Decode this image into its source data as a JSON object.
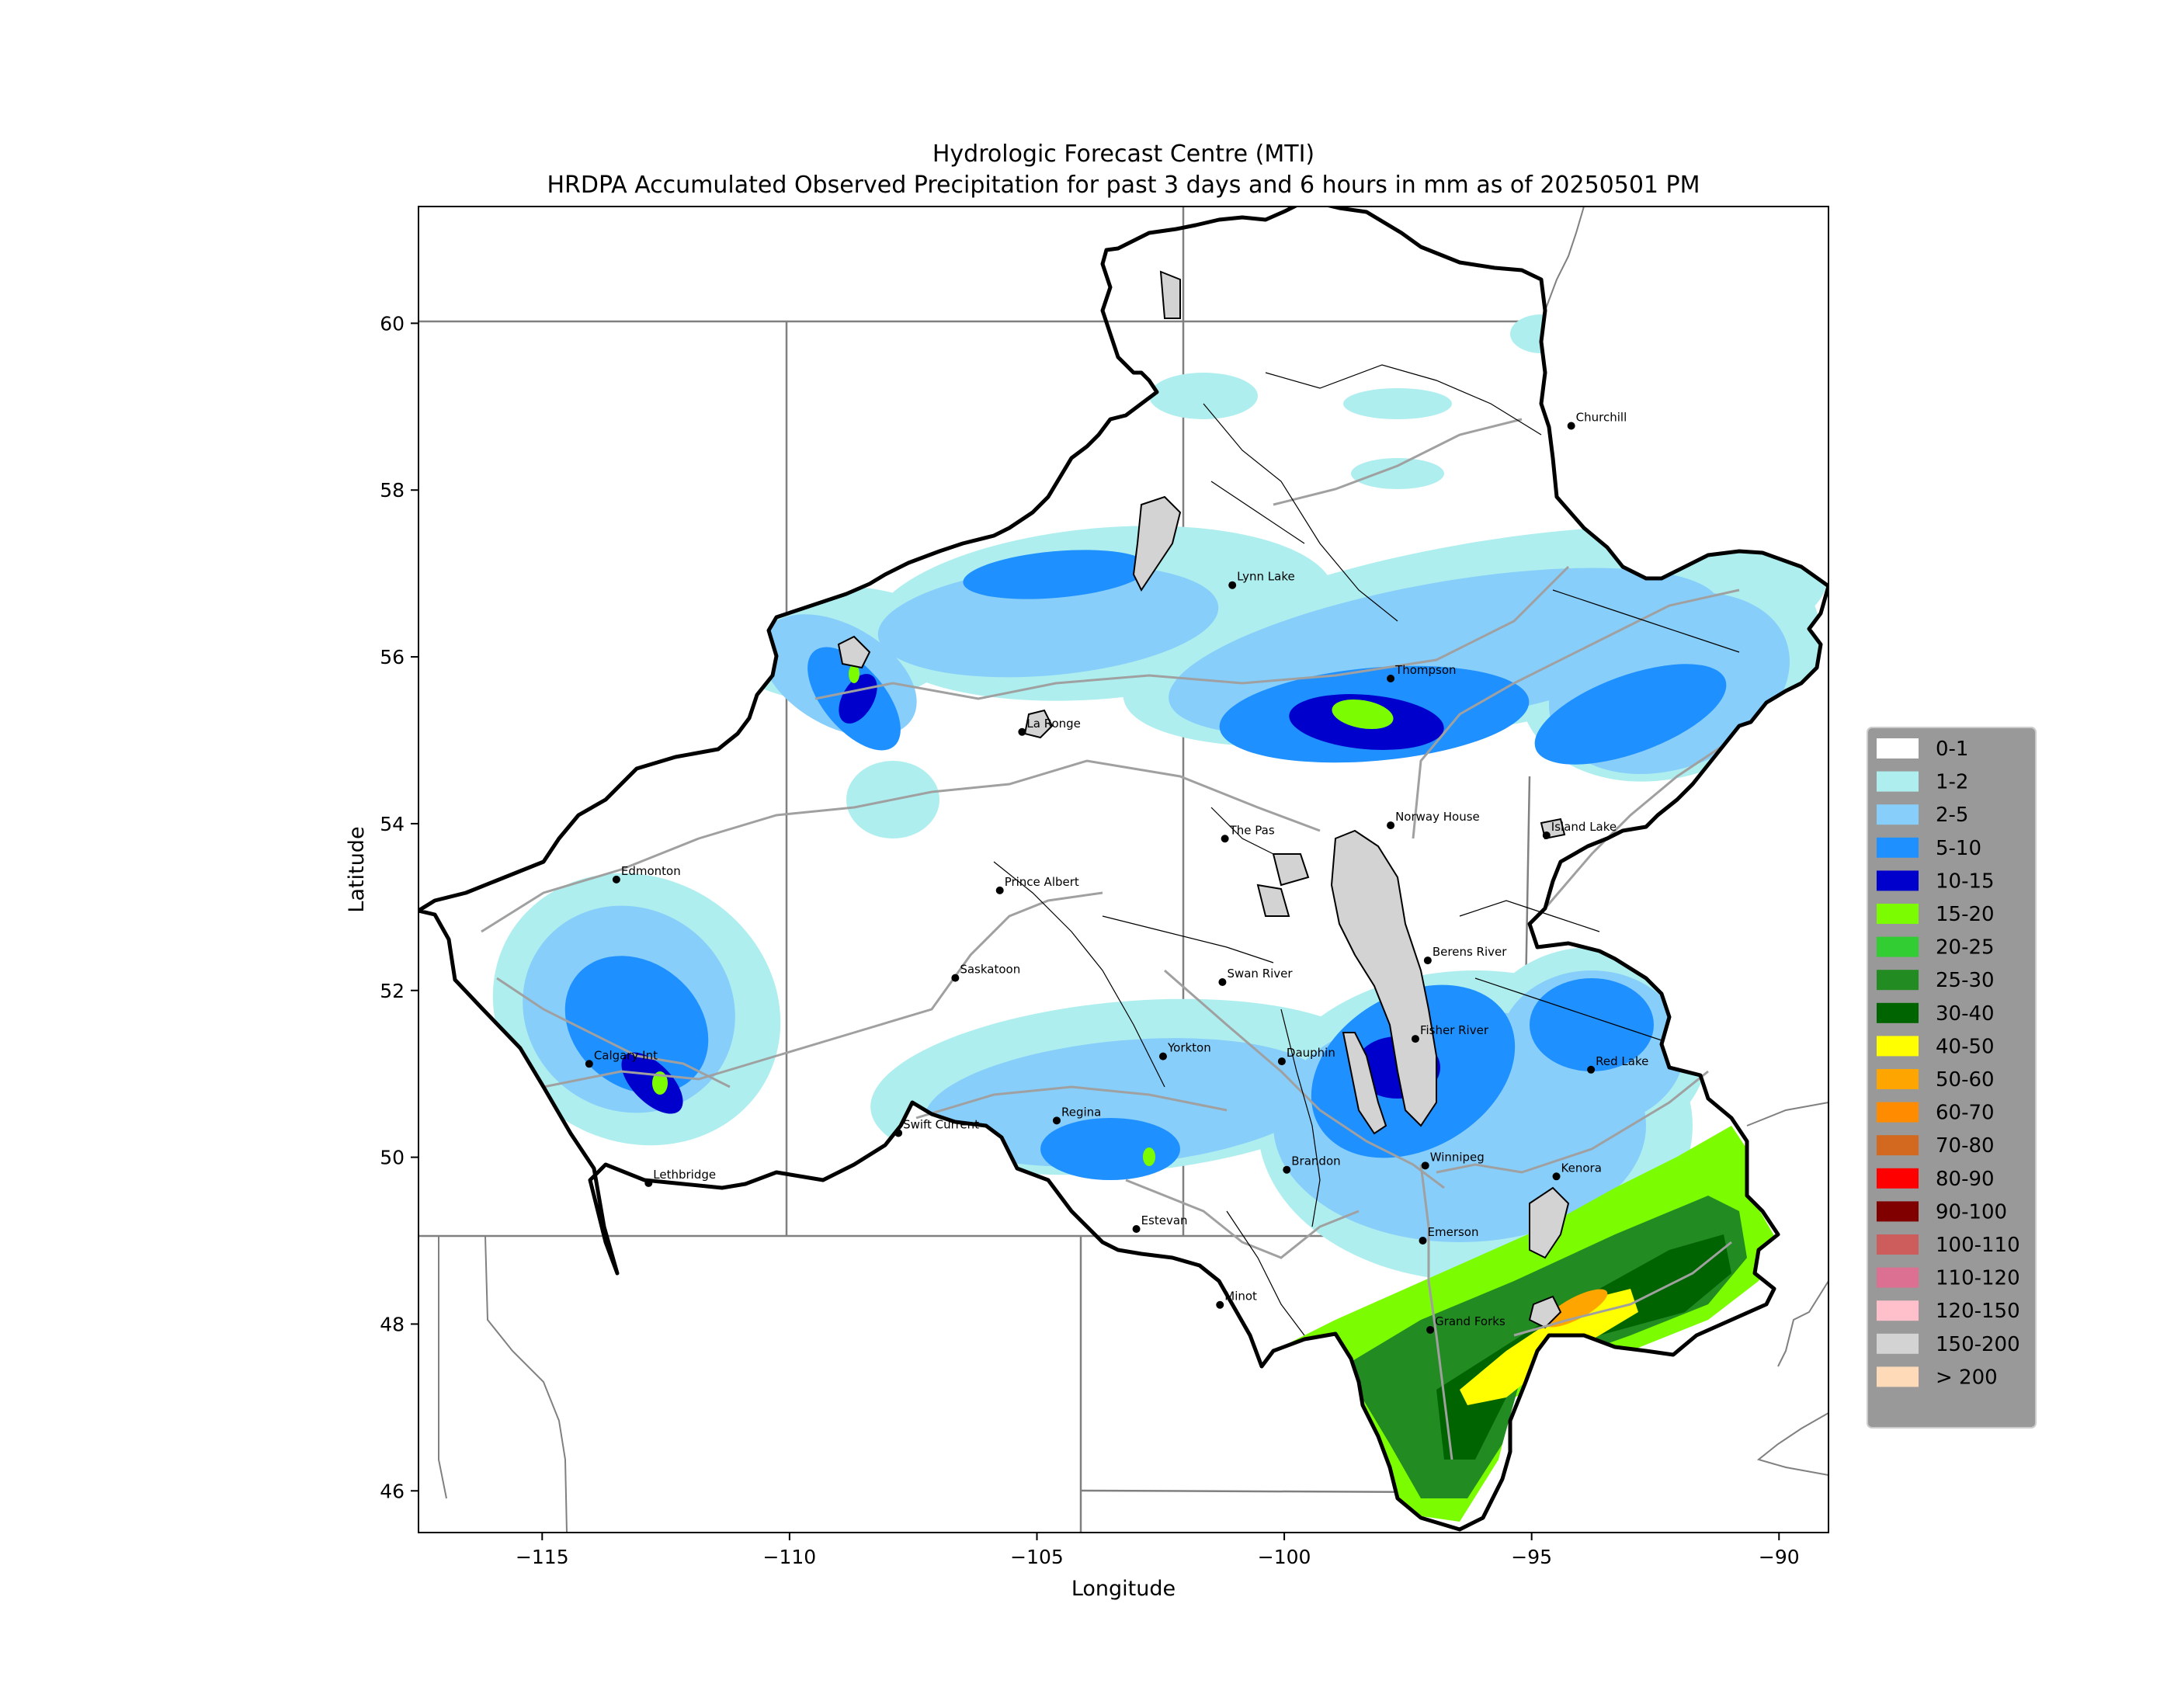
{
  "title": {
    "line1": "Hydrologic Forecast Centre (MTI)",
    "line2": "HRDPA Accumulated Observed Precipitation for past 3 days and 6 hours in mm as of 20250501 PM"
  },
  "axes": {
    "xlabel": "Longitude",
    "ylabel": "Latitude",
    "xlim": [
      -117.5,
      -89
    ],
    "ylim": [
      45.5,
      61.4
    ],
    "xticks": [
      -115,
      -110,
      -105,
      -100,
      -95,
      -90
    ],
    "xtick_labels": [
      "−115",
      "−110",
      "−105",
      "−100",
      "−95",
      "−90"
    ],
    "yticks": [
      46,
      48,
      50,
      52,
      54,
      56,
      58,
      60
    ],
    "ytick_labels": [
      "46",
      "48",
      "50",
      "52",
      "54",
      "56",
      "58",
      "60"
    ]
  },
  "cities": [
    {
      "name": "Churchill",
      "lon": -94.2,
      "lat": 58.77
    },
    {
      "name": "Lynn Lake",
      "lon": -101.05,
      "lat": 56.86
    },
    {
      "name": "Thompson",
      "lon": -97.85,
      "lat": 55.74
    },
    {
      "name": "La Ronge",
      "lon": -105.3,
      "lat": 55.1
    },
    {
      "name": "The Pas",
      "lon": -101.2,
      "lat": 53.82
    },
    {
      "name": "Norway House",
      "lon": -97.85,
      "lat": 53.98
    },
    {
      "name": "Island Lake",
      "lon": -94.7,
      "lat": 53.86
    },
    {
      "name": "Edmonton",
      "lon": -113.5,
      "lat": 53.33
    },
    {
      "name": "Prince Albert",
      "lon": -105.75,
      "lat": 53.2
    },
    {
      "name": "Saskatoon",
      "lon": -106.65,
      "lat": 52.15
    },
    {
      "name": "Swan River",
      "lon": -101.25,
      "lat": 52.1
    },
    {
      "name": "Berens River",
      "lon": -97.1,
      "lat": 52.36
    },
    {
      "name": "Fisher River",
      "lon": -97.35,
      "lat": 51.42
    },
    {
      "name": "Yorkton",
      "lon": -102.45,
      "lat": 51.21
    },
    {
      "name": "Dauphin",
      "lon": -100.05,
      "lat": 51.15
    },
    {
      "name": "Red Lake",
      "lon": -93.8,
      "lat": 51.05
    },
    {
      "name": "Calgary Int",
      "lon": -114.05,
      "lat": 51.12
    },
    {
      "name": "Swift Current",
      "lon": -107.8,
      "lat": 50.29
    },
    {
      "name": "Regina",
      "lon": -104.6,
      "lat": 50.44
    },
    {
      "name": "Brandon",
      "lon": -99.95,
      "lat": 49.85
    },
    {
      "name": "Winnipeg",
      "lon": -97.15,
      "lat": 49.9
    },
    {
      "name": "Kenora",
      "lon": -94.5,
      "lat": 49.77
    },
    {
      "name": "Lethbridge",
      "lon": -112.85,
      "lat": 49.69
    },
    {
      "name": "Estevan",
      "lon": -102.99,
      "lat": 49.14
    },
    {
      "name": "Emerson",
      "lon": -97.2,
      "lat": 49.0
    },
    {
      "name": "Minot",
      "lon": -101.3,
      "lat": 48.23
    },
    {
      "name": "Grand Forks",
      "lon": -97.05,
      "lat": 47.93
    }
  ],
  "legend": {
    "placement": "right",
    "items": [
      {
        "label": "0-1",
        "color": "#ffffff"
      },
      {
        "label": "1-2",
        "color": "#aeeeee"
      },
      {
        "label": "2-5",
        "color": "#87cefa"
      },
      {
        "label": "5-10",
        "color": "#1e90ff"
      },
      {
        "label": "10-15",
        "color": "#0000cd"
      },
      {
        "label": "15-20",
        "color": "#7cfc00"
      },
      {
        "label": "20-25",
        "color": "#32cd32"
      },
      {
        "label": "25-30",
        "color": "#228b22"
      },
      {
        "label": "30-40",
        "color": "#006400"
      },
      {
        "label": "40-50",
        "color": "#ffff00"
      },
      {
        "label": "50-60",
        "color": "#ffa500"
      },
      {
        "label": "60-70",
        "color": "#ff8c00"
      },
      {
        "label": "70-80",
        "color": "#d2691e"
      },
      {
        "label": "80-90",
        "color": "#ff0000"
      },
      {
        "label": "90-100",
        "color": "#800000"
      },
      {
        "label": "100-110",
        "color": "#cd5c5c"
      },
      {
        "label": "110-120",
        "color": "#db7093"
      },
      {
        "label": "120-150",
        "color": "#ffc0cb"
      },
      {
        "label": "150-200",
        "color": "#d3d3d3"
      },
      {
        "label": "> 200",
        "color": "#ffdab9"
      }
    ]
  },
  "colors": {
    "basin_outline": "#000000",
    "rivers": "#a0a0a0",
    "lakes": "#d3d3d3",
    "borders": "#808080",
    "legend_bg": "#999999"
  }
}
